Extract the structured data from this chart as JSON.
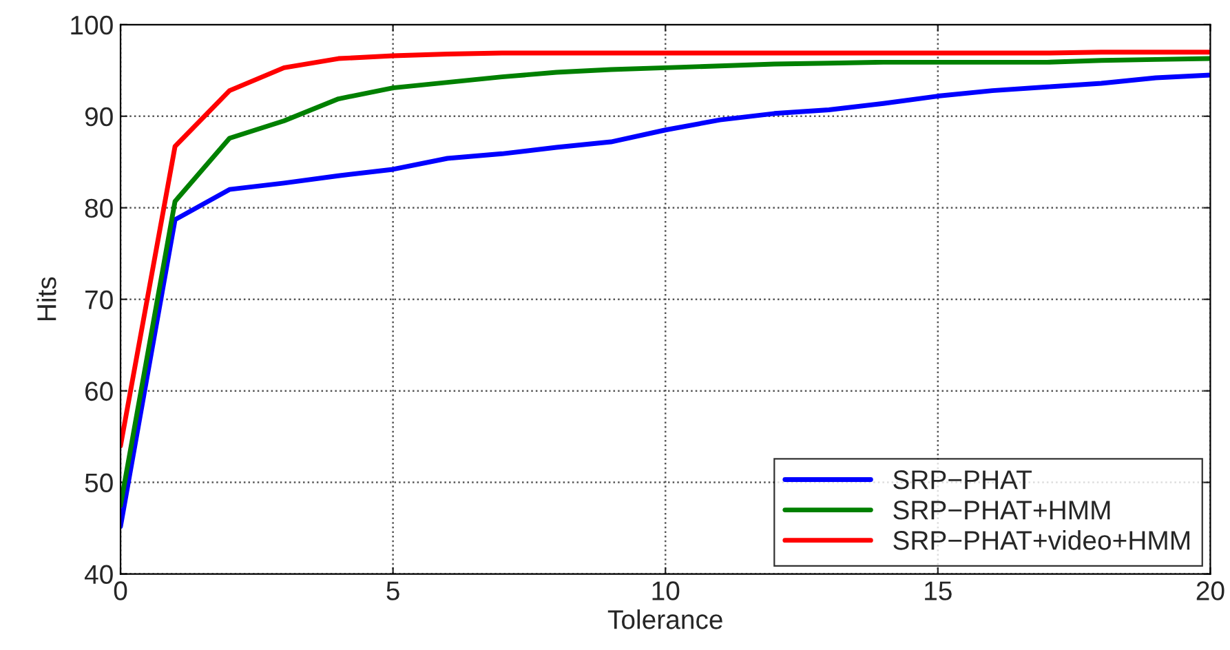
{
  "chart_data": {
    "type": "line",
    "xlabel": "Tolerance",
    "ylabel": "Hits",
    "x": [
      0,
      1,
      2,
      3,
      4,
      5,
      6,
      7,
      8,
      9,
      10,
      11,
      12,
      13,
      14,
      15,
      16,
      17,
      18,
      19,
      20
    ],
    "series": [
      {
        "name": "SRP−PHAT",
        "color": "#0000ff",
        "values": [
          45.2,
          78.7,
          82.0,
          82.7,
          83.5,
          84.2,
          85.4,
          85.9,
          86.6,
          87.2,
          88.5,
          89.6,
          90.3,
          90.7,
          91.4,
          92.2,
          92.8,
          93.2,
          93.6,
          94.2,
          94.5
        ]
      },
      {
        "name": "SRP−PHAT+HMM",
        "color": "#008000",
        "values": [
          47.5,
          80.7,
          87.6,
          89.5,
          91.9,
          93.1,
          93.7,
          94.3,
          94.8,
          95.1,
          95.3,
          95.5,
          95.7,
          95.8,
          95.9,
          95.9,
          95.9,
          95.9,
          96.1,
          96.2,
          96.3
        ]
      },
      {
        "name": "SRP−PHAT+video+HMM",
        "color": "#ff0000",
        "values": [
          54.0,
          86.7,
          92.8,
          95.3,
          96.3,
          96.6,
          96.8,
          96.9,
          96.9,
          96.9,
          96.9,
          96.9,
          96.9,
          96.9,
          96.9,
          96.9,
          96.9,
          96.9,
          97.0,
          97.0,
          97.0
        ]
      }
    ],
    "xlim": [
      0,
      20
    ],
    "ylim": [
      40,
      100
    ],
    "xticks": [
      0,
      5,
      10,
      15,
      20
    ],
    "yticks": [
      40,
      50,
      60,
      70,
      80,
      90,
      100
    ],
    "grid": true,
    "legend": "bottom right",
    "line_style": "solid",
    "marker": "none"
  }
}
